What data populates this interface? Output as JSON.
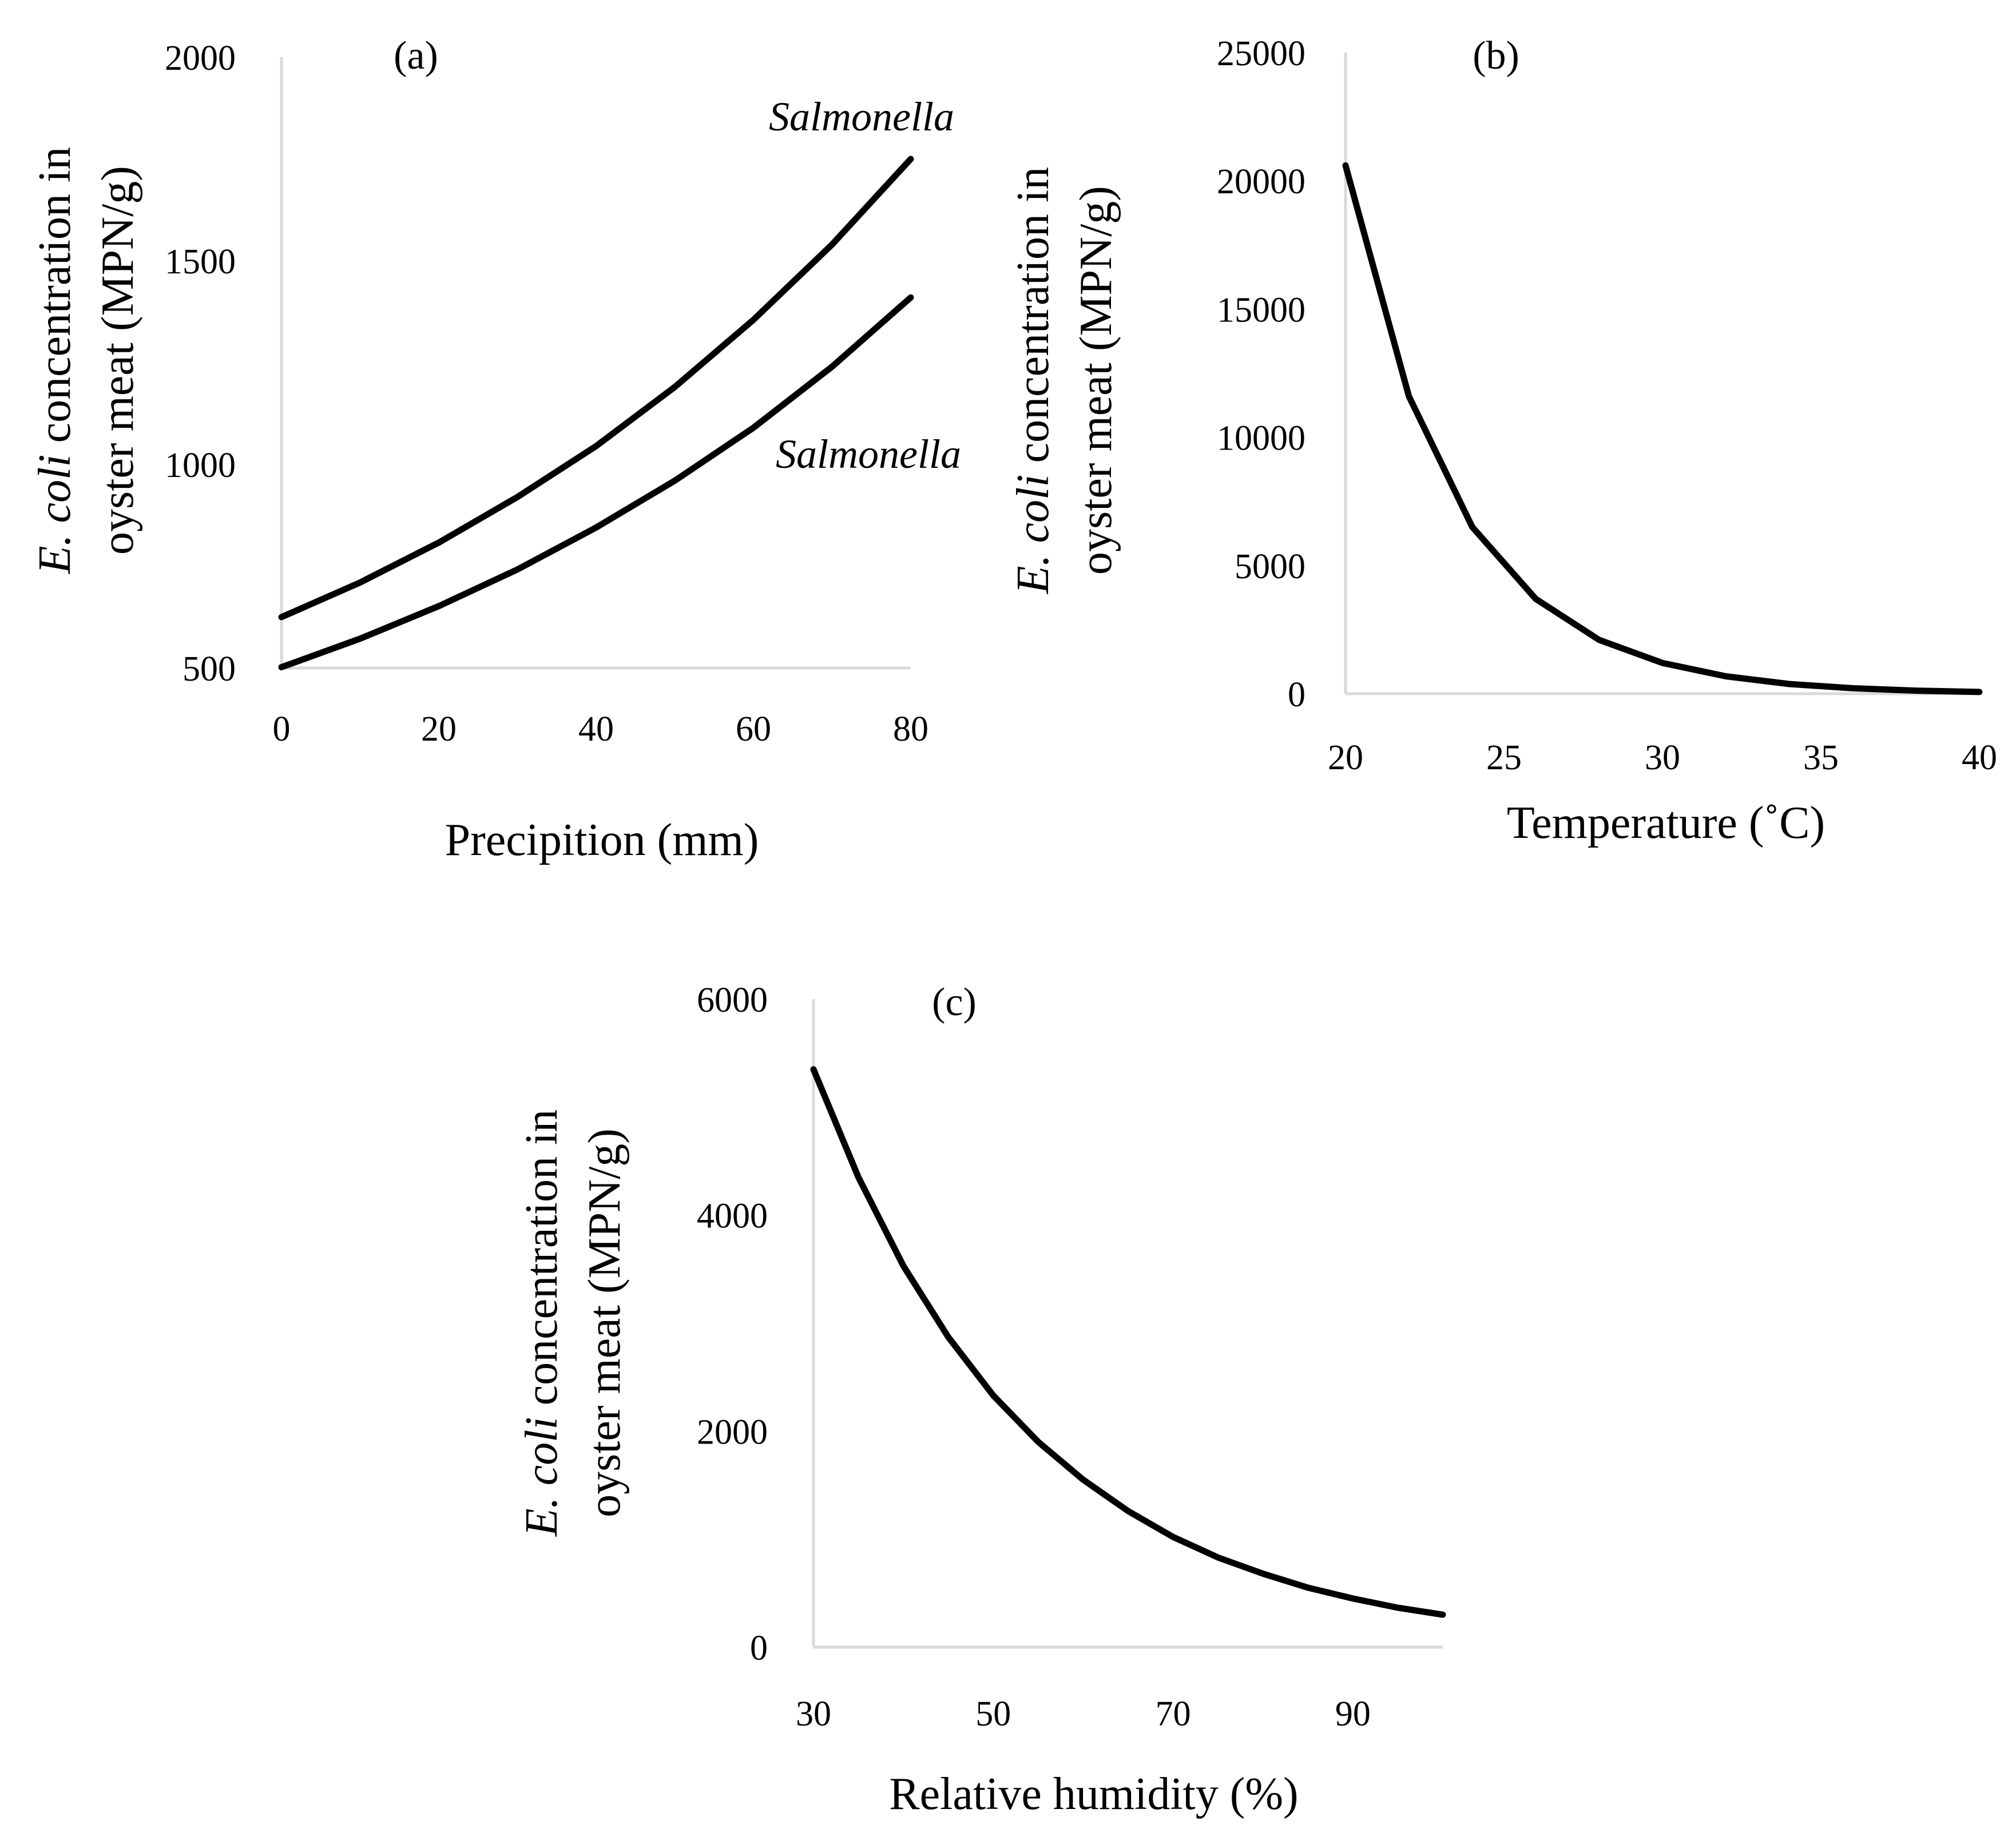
{
  "chart_data": [
    {
      "type": "line",
      "panel_label": "(a)",
      "x": [
        0,
        10,
        20,
        30,
        40,
        50,
        60,
        70,
        80
      ],
      "xlabel": "Precipition (mm)",
      "ylabel_italic": "E. coli",
      "ylabel_line1_rest": " concentration in",
      "ylabel_line2": "oyster meat (MPN/g)",
      "xlim": [
        0,
        80
      ],
      "ylim": [
        500,
        2000
      ],
      "xticks": [
        "0",
        "20",
        "40",
        "60",
        "80"
      ],
      "yticks": [
        "500",
        "1000",
        "1500",
        "2000"
      ],
      "grid": false,
      "series": [
        {
          "name": "Salmonella",
          "values": [
            625,
            710,
            808,
            920,
            1045,
            1190,
            1355,
            1540,
            1750
          ]
        },
        {
          "name": "Salmonella",
          "values": [
            502,
            572,
            652,
            742,
            845,
            960,
            1090,
            1240,
            1410
          ]
        }
      ]
    },
    {
      "type": "line",
      "panel_label": "(b)",
      "x": [
        20,
        22,
        24,
        26,
        28,
        30,
        32,
        34,
        36,
        38,
        40
      ],
      "xlabel": "Temperature (˚C)",
      "ylabel_italic": "E.  coli",
      "ylabel_line1_rest": " concentration in",
      "ylabel_line2": "oyster meat (MPN/g)",
      "xlim": [
        20,
        40
      ],
      "ylim": [
        0,
        25000
      ],
      "xticks": [
        "20",
        "25",
        "30",
        "35",
        "40"
      ],
      "yticks": [
        "0",
        "5000",
        "10000",
        "15000",
        "20000",
        "25000"
      ],
      "grid": false,
      "series": [
        {
          "values": [
            20600,
            11600,
            6500,
            3700,
            2100,
            1200,
            680,
            380,
            215,
            120,
            70
          ]
        }
      ]
    },
    {
      "type": "line",
      "panel_label": "(c)",
      "x": [
        30,
        35,
        40,
        45,
        50,
        55,
        60,
        65,
        70,
        75,
        80,
        85,
        90,
        95,
        100
      ],
      "xlabel": "Relative humidity (%)",
      "ylabel_italic": "E. coli",
      "ylabel_line1_rest": " concentration in",
      "ylabel_line2": "oyster meat (MPN/g)",
      "xlim": [
        30,
        100
      ],
      "ylim": [
        0,
        6000
      ],
      "xticks": [
        "30",
        "50",
        "70",
        "90"
      ],
      "yticks": [
        "0",
        "2000",
        "4000",
        "6000"
      ],
      "grid": false,
      "series": [
        {
          "values": [
            5350,
            4350,
            3530,
            2870,
            2330,
            1900,
            1550,
            1260,
            1020,
            830,
            680,
            550,
            450,
            365,
            300
          ]
        }
      ]
    }
  ]
}
